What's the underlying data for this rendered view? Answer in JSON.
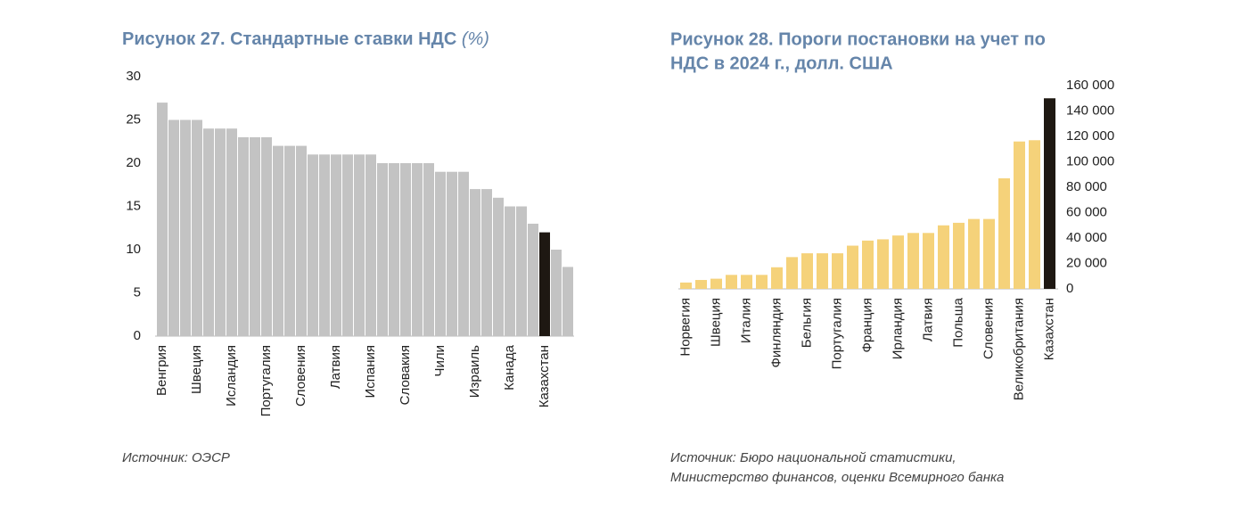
{
  "chart_data": [
    {
      "type": "bar",
      "title": "Рисунок 27. Стандартные ставки НДС",
      "title_unit": "(%)",
      "categories": [
        "Венгрия",
        null,
        null,
        "Швеция",
        null,
        null,
        "Исландия",
        null,
        null,
        "Португалия",
        null,
        null,
        "Словения",
        null,
        null,
        "Латвия",
        null,
        null,
        "Испания",
        null,
        null,
        "Словакия",
        null,
        null,
        "Чили",
        null,
        null,
        "Израиль",
        null,
        null,
        "Канада",
        null,
        null,
        "Казахстан",
        null,
        null
      ],
      "values": [
        27,
        25,
        25,
        25,
        24,
        24,
        24,
        23,
        23,
        23,
        22,
        22,
        22,
        21,
        21,
        21,
        21,
        21,
        21,
        20,
        20,
        20,
        20,
        20,
        19,
        19,
        19,
        17,
        17,
        16,
        15,
        15,
        13,
        12,
        10,
        8
      ],
      "color": "#c3c3c3",
      "highlight": "Казахстан",
      "highlight_color": "#1e1812",
      "ylim": [
        0,
        30
      ],
      "yticks": [
        0,
        5,
        10,
        15,
        20,
        25,
        30
      ],
      "source": [
        "Источник: ОЭСР"
      ]
    },
    {
      "type": "bar",
      "title": [
        "Рисунок 28. Пороги постановки на учет по",
        "НДС в 2024 г., долл. США"
      ],
      "categories": [
        "Норвегия",
        null,
        "Швеция",
        null,
        "Италия",
        null,
        "Финляндия",
        null,
        "Бельгия",
        null,
        "Португалия",
        null,
        "Франция",
        null,
        "Ирландия",
        null,
        "Латвия",
        null,
        "Польша",
        null,
        "Словения",
        null,
        "Великобритания",
        null,
        "Казахстан"
      ],
      "values": [
        5000,
        7000,
        8000,
        11000,
        11000,
        11000,
        17000,
        25000,
        28000,
        28000,
        28000,
        34000,
        38000,
        39000,
        42000,
        44000,
        44000,
        50000,
        52000,
        55000,
        55000,
        87000,
        116000,
        117000,
        150000
      ],
      "color": "#f5d27a",
      "highlight": "Казахстан",
      "highlight_color": "#1e1812",
      "ylim": [
        0,
        160000
      ],
      "yticks": [
        0,
        {
          "value": 20000,
          "label": "20 000"
        },
        {
          "value": 40000,
          "label": "40 000"
        },
        {
          "value": 60000,
          "label": "60 000"
        },
        {
          "value": 80000,
          "label": "80 000"
        },
        {
          "value": 100000,
          "label": "100 000"
        },
        {
          "value": 120000,
          "label": "120 000"
        },
        {
          "value": 140000,
          "label": "140 000"
        },
        {
          "value": 160000,
          "label": "160 000"
        }
      ],
      "source": [
        "Источник: Бюро национальной статистики,",
        "Министерство финансов, оценки Всемирного банка"
      ]
    }
  ]
}
